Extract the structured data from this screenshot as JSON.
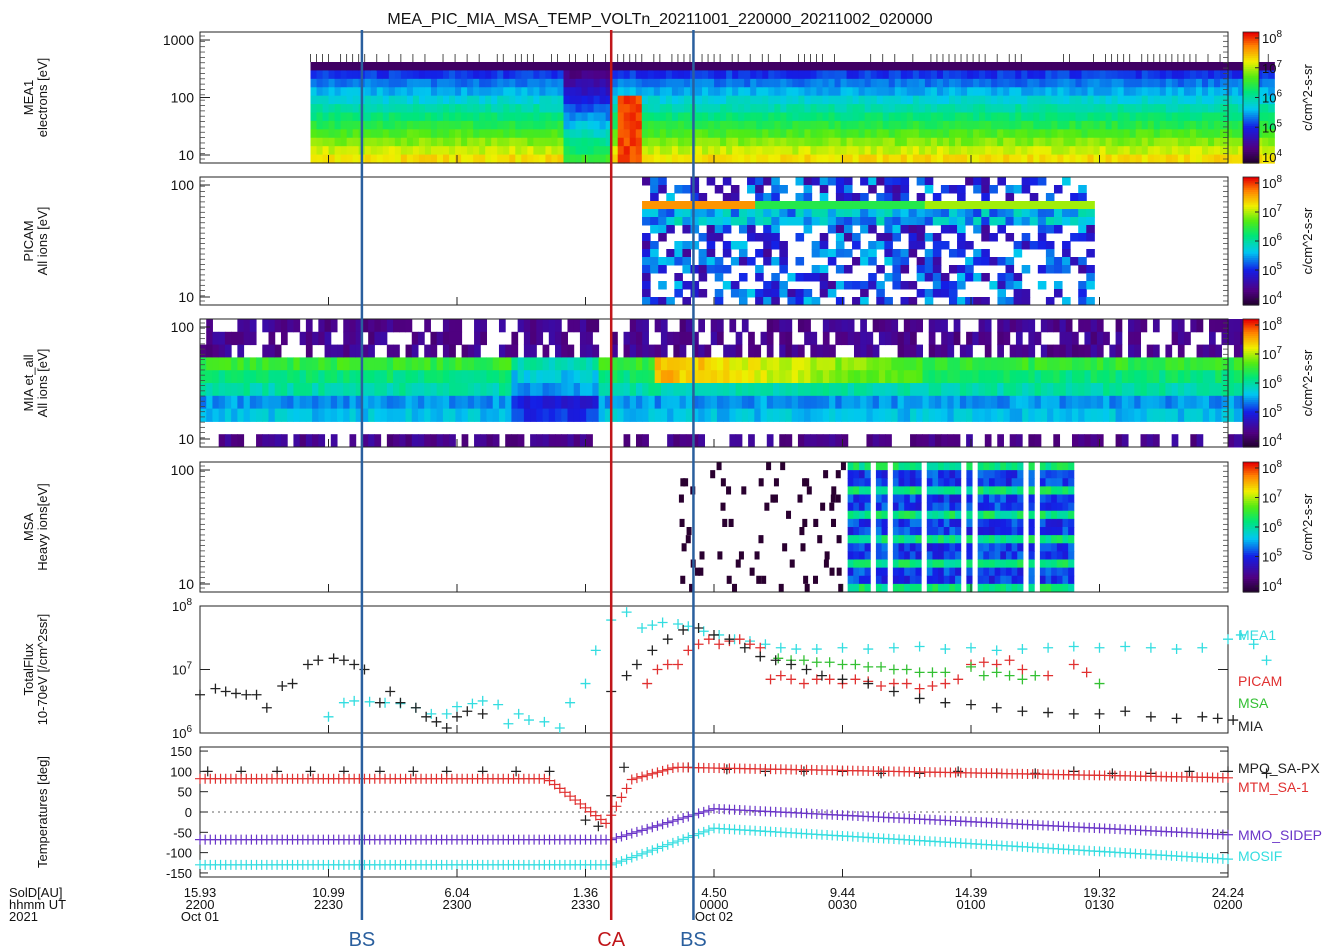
{
  "figure": {
    "title": "MEA_PIC_MIA_MSA_TEMP_VOLTn_20211001_220000_20211002_020000"
  },
  "chart_data": [
    {
      "type": "heatmap",
      "panel": "MEA1",
      "ylabel": [
        "MEA1",
        "electrons [eV]"
      ],
      "yticks": [
        "1000",
        "100",
        "10"
      ],
      "yscale": "log",
      "colorbar": {
        "label": "c/cm^2-s-sr",
        "ticks": [
          "10^8",
          "10^7",
          "10^6",
          "10^5",
          "10^4"
        ]
      },
      "time_range": [
        22.43,
        26.18
      ]
    },
    {
      "type": "heatmap",
      "panel": "PICAM",
      "ylabel": [
        "PICAM",
        "All ions [eV]"
      ],
      "yticks": [
        "100",
        "10"
      ],
      "yscale": "log",
      "colorbar": {
        "label": "c/cm^2-s-sr",
        "ticks": [
          "10^8",
          "10^7",
          "10^6",
          "10^5",
          "10^4"
        ]
      },
      "time_range": [
        23.72,
        25.48
      ]
    },
    {
      "type": "heatmap",
      "panel": "MIA",
      "ylabel": [
        "MIA et_all",
        "All ions [eV]"
      ],
      "yticks": [
        "100",
        "10"
      ],
      "yscale": "log",
      "colorbar": {
        "label": "c/cm^2-s-sr",
        "ticks": [
          "10^8",
          "10^7",
          "10^6",
          "10^5",
          "10^4"
        ]
      },
      "time_range": [
        22.0,
        26.12
      ]
    },
    {
      "type": "heatmap",
      "panel": "MSA",
      "ylabel": [
        "MSA",
        "Heavy ions[eV]"
      ],
      "yticks": [
        "100",
        "10"
      ],
      "yscale": "log",
      "colorbar": {
        "label": "c/cm^2-s-sr",
        "ticks": [
          "10^8",
          "10^7",
          "10^6",
          "10^5",
          "10^4"
        ]
      },
      "time_range": [
        24.15,
        25.92
      ]
    },
    {
      "type": "scatter",
      "panel": "TotalFlux",
      "ylabel": [
        "TotalFlux",
        "10-70eV [/cm^2ssr]"
      ],
      "yticks": [
        "10^8",
        "10^7",
        "10^6"
      ],
      "yscale": "log",
      "ylim": [
        1000000,
        100000000
      ],
      "series": [
        {
          "name": "MEA1",
          "color": "#33dde0",
          "x": [
            22.5,
            22.56,
            22.6,
            22.66,
            22.72,
            22.78,
            22.84,
            22.9,
            22.96,
            23.0,
            23.06,
            23.1,
            23.16,
            23.2,
            23.24,
            23.28,
            23.34,
            23.4,
            23.44,
            23.5,
            23.54,
            23.6,
            23.66,
            23.72,
            23.76,
            23.8,
            23.86,
            23.9,
            23.96,
            24.02,
            24.08,
            24.14,
            24.2,
            24.26,
            24.32,
            24.4,
            24.5,
            24.6,
            24.7,
            24.8,
            24.9,
            25.0,
            25.1,
            25.2,
            25.3,
            25.4,
            25.5,
            25.6,
            25.7,
            25.8,
            25.9,
            26.0,
            26.05,
            26.1,
            26.15
          ],
          "y": [
            1800000,
            3000000,
            3200000,
            3100000,
            3000000,
            2900000,
            2500000,
            2000000,
            2000000,
            2600000,
            2900000,
            3200000,
            2800000,
            1400000,
            2000000,
            1600000,
            1500000,
            1200000,
            3000000,
            6000000,
            20000000,
            60000000,
            80000000,
            45000000,
            50000000,
            55000000,
            52000000,
            48000000,
            40000000,
            35000000,
            30000000,
            28000000,
            25000000,
            22000000,
            21000000,
            21000000,
            22000000,
            21000000,
            22000000,
            23000000,
            21000000,
            22000000,
            20000000,
            21000000,
            22000000,
            23000000,
            22000000,
            23000000,
            22000000,
            21000000,
            22000000,
            30000000,
            35000000,
            25000000,
            14000000
          ]
        },
        {
          "name": "PICAM",
          "color": "#e03030",
          "x": [
            23.74,
            23.78,
            23.82,
            23.86,
            23.9,
            23.94,
            23.98,
            24.02,
            24.06,
            24.1,
            24.14,
            24.18,
            24.22,
            24.26,
            24.3,
            24.35,
            24.4,
            24.45,
            24.5,
            24.55,
            24.6,
            24.65,
            24.7,
            24.75,
            24.8,
            24.85,
            24.9,
            24.95,
            25.0,
            25.05,
            25.1,
            25.15,
            25.2,
            25.3,
            25.4,
            25.45
          ],
          "y": [
            6000000,
            10000000,
            12000000,
            12000000,
            20000000,
            25000000,
            30000000,
            25000000,
            28000000,
            30000000,
            25000000,
            22000000,
            7000000,
            8000000,
            7000000,
            6000000,
            7000000,
            7000000,
            6000000,
            7000000,
            6500000,
            5500000,
            6000000,
            6000000,
            5000000,
            5500000,
            6000000,
            7000000,
            12000000,
            13000000,
            12000000,
            14000000,
            10000000,
            8000000,
            12000000,
            9000000
          ]
        },
        {
          "name": "MSA",
          "color": "#33c033",
          "x": [
            24.25,
            24.3,
            24.35,
            24.4,
            24.45,
            24.5,
            24.55,
            24.6,
            24.65,
            24.7,
            24.75,
            24.8,
            24.85,
            24.9,
            25.0,
            25.05,
            25.1,
            25.15,
            25.2,
            25.25,
            25.5
          ],
          "y": [
            15000000,
            14000000,
            14000000,
            13000000,
            13000000,
            12000000,
            12000000,
            11000000,
            11000000,
            10000000,
            10000000,
            9000000,
            9000000,
            9000000,
            11000000,
            8000000,
            9000000,
            8000000,
            7000000,
            8000000,
            6000000
          ]
        },
        {
          "name": "MIA",
          "color": "#222222",
          "x": [
            22.0,
            22.06,
            22.1,
            22.14,
            22.18,
            22.22,
            22.26,
            22.32,
            22.36,
            22.42,
            22.46,
            22.52,
            22.56,
            22.6,
            22.64,
            22.7,
            22.74,
            22.78,
            22.84,
            22.88,
            22.92,
            22.96,
            23.0,
            23.04,
            23.1,
            23.6,
            23.66,
            23.7,
            23.76,
            23.82,
            23.88,
            23.94,
            24.0,
            24.06,
            24.12,
            24.18,
            24.24,
            24.3,
            24.36,
            24.42,
            24.5,
            24.6,
            24.7,
            24.8,
            24.9,
            25.0,
            25.1,
            25.2,
            25.3,
            25.4,
            25.5,
            25.6,
            25.7,
            25.8,
            25.9,
            25.96,
            26.02
          ],
          "y": [
            4000000,
            5000000,
            4500000,
            4200000,
            4000000,
            4000000,
            2500000,
            5500000,
            6000000,
            12000000,
            14000000,
            15000000,
            14000000,
            12000000,
            10000000,
            3000000,
            4500000,
            3000000,
            2500000,
            1800000,
            1500000,
            1200000,
            1800000,
            2200000,
            2000000,
            4500000,
            8000000,
            12000000,
            20000000,
            30000000,
            42000000,
            45000000,
            35000000,
            30000000,
            22000000,
            16000000,
            14000000,
            12000000,
            10000000,
            8000000,
            7000000,
            6000000,
            4500000,
            3500000,
            3000000,
            2800000,
            2500000,
            2200000,
            2100000,
            2000000,
            2000000,
            2200000,
            1800000,
            1700000,
            1800000,
            1700000,
            1600000
          ]
        }
      ]
    },
    {
      "type": "scatter",
      "panel": "Temperatures",
      "ylabel": [
        "Temperatures [deg]"
      ],
      "yticks": [
        "150",
        "100",
        "50",
        "0",
        "-50",
        "-100",
        "-150"
      ],
      "ylim": [
        -160,
        160
      ],
      "series": [
        {
          "name": "MPO_SA-PX",
          "color": "#222222",
          "x": [
            22.03,
            22.16,
            22.3,
            22.43,
            22.56,
            22.7,
            22.83,
            22.96,
            23.1,
            23.23,
            23.36,
            23.5,
            23.55,
            23.6,
            23.65,
            23.9,
            24.05,
            24.2,
            24.35,
            24.5,
            24.65,
            24.8,
            24.95,
            25.1,
            25.25,
            25.4,
            25.55,
            25.7,
            25.85,
            26.0,
            26.15
          ],
          "y": [
            100,
            100,
            100,
            100,
            100,
            100,
            100,
            100,
            100,
            100,
            100,
            -20,
            -35,
            40,
            110,
            110,
            105,
            100,
            100,
            100,
            95,
            95,
            100,
            95,
            95,
            100,
            95,
            95,
            100,
            100,
            95
          ]
        },
        {
          "name": "MTM_SA-1",
          "color": "#e03030"
        },
        {
          "name": "MMO_SIDEP",
          "color": "#6a35c8"
        },
        {
          "name": "MOSIF",
          "color": "#33dde0"
        }
      ]
    }
  ],
  "time_axis": {
    "row_labels": [
      "SolD[AU]",
      "hhmm UT",
      "2021"
    ],
    "ticks": [
      {
        "sold": "15.93",
        "hhmm": "2200",
        "date": "Oct 01"
      },
      {
        "sold": "10.99",
        "hhmm": "2230",
        "date": ""
      },
      {
        "sold": "6.04",
        "hhmm": "2300",
        "date": ""
      },
      {
        "sold": "1.36",
        "hhmm": "2330",
        "date": ""
      },
      {
        "sold": "4.50",
        "hhmm": "0000",
        "date": "Oct 02"
      },
      {
        "sold": "9.44",
        "hhmm": "0030",
        "date": ""
      },
      {
        "sold": "14.39",
        "hhmm": "0100",
        "date": ""
      },
      {
        "sold": "19.32",
        "hhmm": "0130",
        "date": ""
      },
      {
        "sold": "24.24",
        "hhmm": "0200",
        "date": ""
      }
    ]
  },
  "events": [
    {
      "label": "BS",
      "time": 22.63,
      "color": "#2a5f9e"
    },
    {
      "label": "CA",
      "time": 23.6,
      "color": "#c0161a"
    },
    {
      "label": "BS",
      "time": 23.92,
      "color": "#2a5f9e"
    }
  ]
}
